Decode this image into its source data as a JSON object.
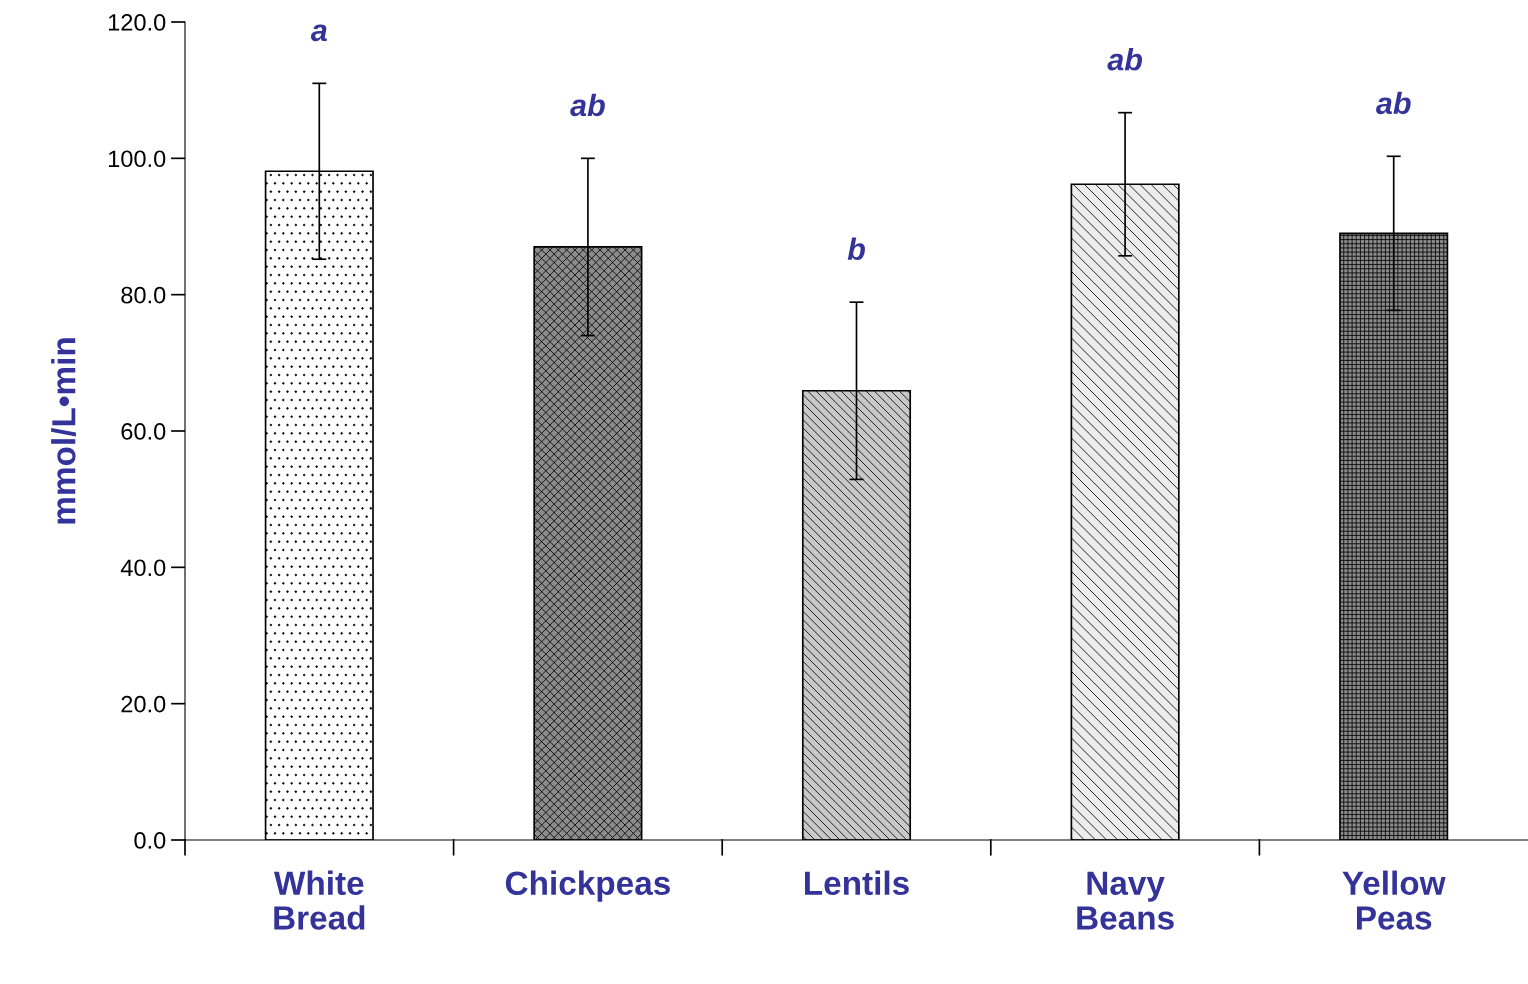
{
  "chart_data": {
    "type": "bar",
    "categories": [
      "White Bread",
      "Chickpeas",
      "Lentils",
      "Navy Beans",
      "Yellow Peas"
    ],
    "values": [
      98.1,
      87.0,
      65.9,
      96.2,
      89.0
    ],
    "errors": [
      12.9,
      13.0,
      13.0,
      10.5,
      11.3
    ],
    "colors": [
      "#ffffff",
      "#8c8c8c",
      "#c8c8c8",
      "#ececec",
      "#8c8c8c"
    ],
    "ylabel": "mmol/L•min",
    "ylim": [
      0,
      120
    ],
    "yticks": [
      {
        "value": 0,
        "label": "0.0"
      },
      {
        "value": 20,
        "label": "20.0"
      },
      {
        "value": 40,
        "label": "40.0"
      },
      {
        "value": 60,
        "label": "60.0"
      },
      {
        "value": 80,
        "label": "80.0"
      },
      {
        "value": 100,
        "label": "100.0"
      },
      {
        "value": 120,
        "label": "120.0"
      }
    ],
    "annotations": [
      "a",
      "ab",
      "b",
      "ab",
      "ab"
    ],
    "grid": false,
    "legend": false
  }
}
